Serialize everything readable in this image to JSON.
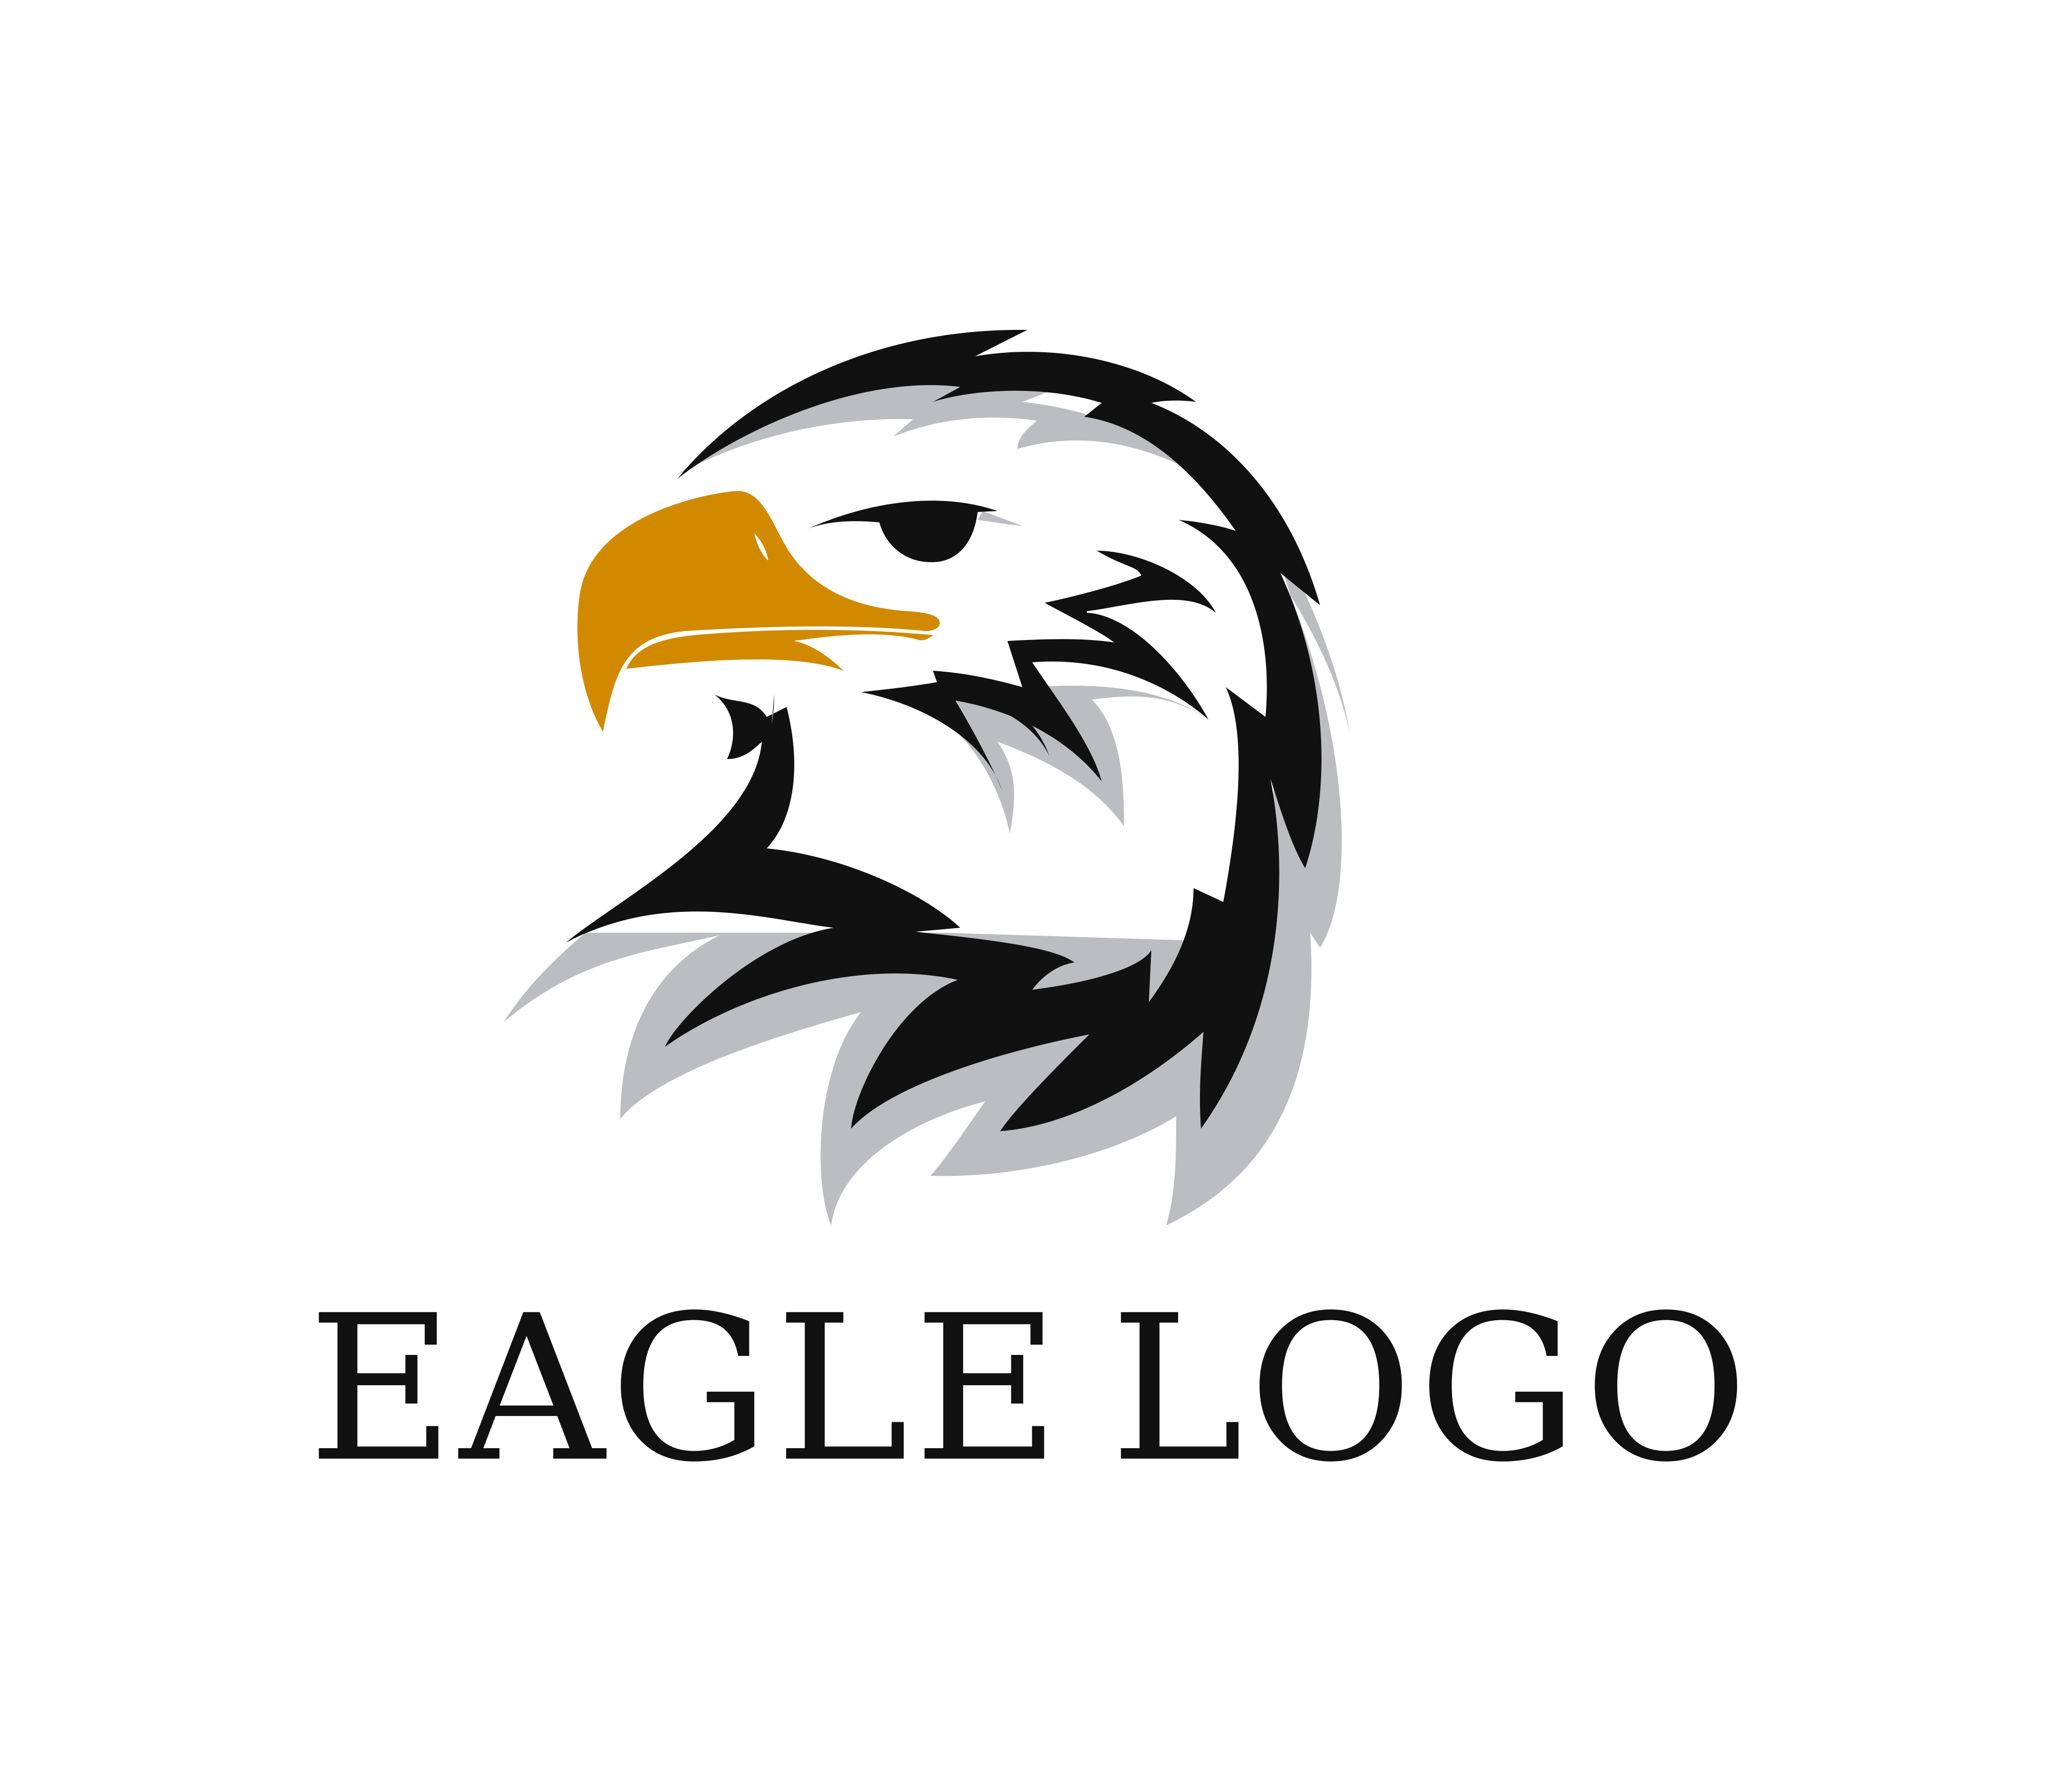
{
  "logo": {
    "word_1": "EAGLE",
    "word_2": "LOGO",
    "colors": {
      "background": "#ffffff",
      "ink": "#111111",
      "shadow": "#bcbdc0",
      "beak": "#d18a00",
      "head": "#ffffff"
    },
    "emblem_icon": "eagle-head-icon"
  }
}
